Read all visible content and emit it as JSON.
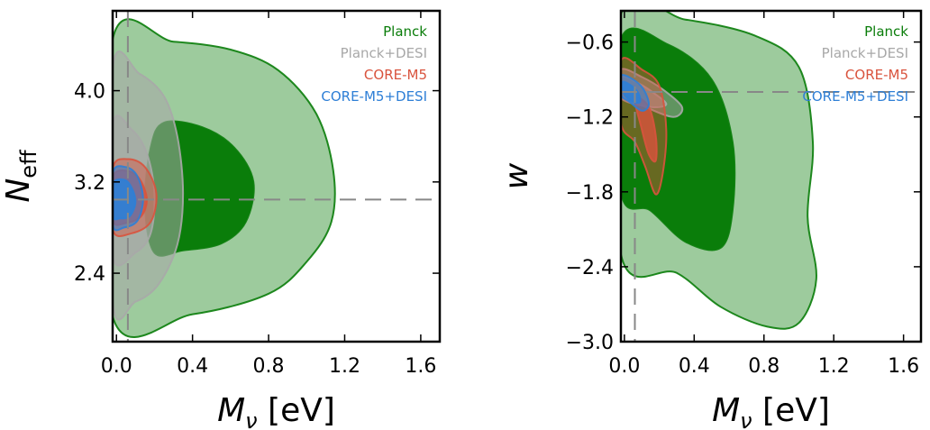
{
  "colors": {
    "planck": "#0a7d0a",
    "planck_desi": "#a8a8a8",
    "core_m5": "#d9533d",
    "core_m5_desi": "#2e7fd6",
    "reference": "#888888"
  },
  "chart_data": [
    {
      "type": "contour",
      "xlabel": "M_ν [eV]",
      "ylabel": "N_eff",
      "xlim": [
        -0.02,
        1.7
      ],
      "ylim": [
        1.8,
        4.7
      ],
      "xticks": [
        "0.0",
        "0.4",
        "0.8",
        "1.2",
        "1.6"
      ],
      "yticks": [
        "2.4",
        "3.2",
        "4.0"
      ],
      "xtick_values": [
        0.0,
        0.4,
        0.8,
        1.2,
        1.6
      ],
      "ytick_values": [
        2.4,
        3.2,
        4.0
      ],
      "fiducial": {
        "x": 0.06,
        "y": 3.046
      },
      "legend_position": "top-right",
      "series": [
        {
          "name": "Planck",
          "levels": [
            "68%",
            "95%"
          ],
          "contours": {
            "95": [
              [
                -0.02,
                4.45
              ],
              [
                0.3,
                4.43
              ],
              [
                0.6,
                4.36
              ],
              [
                0.85,
                4.18
              ],
              [
                1.05,
                3.8
              ],
              [
                1.14,
                3.3
              ],
              [
                1.13,
                2.85
              ],
              [
                1.0,
                2.5
              ],
              [
                0.8,
                2.22
              ],
              [
                0.4,
                2.04
              ],
              [
                -0.02,
                2.02
              ]
            ],
            "68": [
              [
                0.25,
                3.72
              ],
              [
                0.45,
                3.68
              ],
              [
                0.62,
                3.5
              ],
              [
                0.72,
                3.2
              ],
              [
                0.68,
                2.85
              ],
              [
                0.55,
                2.66
              ],
              [
                0.35,
                2.6
              ],
              [
                0.2,
                2.58
              ],
              [
                0.15,
                3.0
              ],
              [
                0.18,
                3.5
              ]
            ]
          }
        },
        {
          "name": "Planck+DESI",
          "levels": [
            "68%",
            "95%"
          ],
          "contours": {
            "95": [
              [
                -0.02,
                4.2
              ],
              [
                0.12,
                4.15
              ],
              [
                0.25,
                3.95
              ],
              [
                0.32,
                3.6
              ],
              [
                0.35,
                3.1
              ],
              [
                0.32,
                2.65
              ],
              [
                0.22,
                2.3
              ],
              [
                0.1,
                2.15
              ],
              [
                -0.02,
                2.15
              ]
            ],
            "68": [
              [
                -0.02,
                3.7
              ],
              [
                0.08,
                3.66
              ],
              [
                0.16,
                3.45
              ],
              [
                0.2,
                3.1
              ],
              [
                0.18,
                2.75
              ],
              [
                0.1,
                2.58
              ],
              [
                -0.02,
                2.55
              ]
            ]
          }
        },
        {
          "name": "CORE-M5",
          "levels": [
            "68%",
            "95%"
          ],
          "contours": {
            "95": [
              [
                -0.02,
                3.32
              ],
              [
                0.06,
                3.4
              ],
              [
                0.15,
                3.33
              ],
              [
                0.21,
                3.1
              ],
              [
                0.18,
                2.85
              ],
              [
                0.08,
                2.75
              ],
              [
                -0.02,
                2.78
              ]
            ],
            "68": [
              [
                -0.02,
                3.24
              ],
              [
                0.05,
                3.3
              ],
              [
                0.12,
                3.23
              ],
              [
                0.16,
                3.05
              ],
              [
                0.13,
                2.9
              ],
              [
                0.05,
                2.84
              ],
              [
                -0.02,
                2.86
              ]
            ]
          }
        },
        {
          "name": "CORE-M5+DESI",
          "levels": [
            "68%",
            "95%"
          ],
          "contours": {
            "95": [
              [
                -0.02,
                3.28
              ],
              [
                0.05,
                3.33
              ],
              [
                0.11,
                3.25
              ],
              [
                0.14,
                3.05
              ],
              [
                0.11,
                2.86
              ],
              [
                0.04,
                2.8
              ],
              [
                -0.02,
                2.82
              ]
            ],
            "68": [
              [
                -0.02,
                3.18
              ],
              [
                0.04,
                3.22
              ],
              [
                0.08,
                3.15
              ],
              [
                0.1,
                3.02
              ],
              [
                0.07,
                2.9
              ],
              [
                0.02,
                2.88
              ],
              [
                -0.02,
                2.9
              ]
            ]
          }
        }
      ]
    },
    {
      "type": "contour",
      "xlabel": "M_ν [eV]",
      "ylabel": "w",
      "xlim": [
        -0.02,
        1.7
      ],
      "ylim": [
        -3.0,
        -0.35
      ],
      "xticks": [
        "0.0",
        "0.4",
        "0.8",
        "1.2",
        "1.6"
      ],
      "yticks": [
        "−3.0",
        "−2.4",
        "−1.8",
        "−1.2",
        "−0.6"
      ],
      "xtick_values": [
        0.0,
        0.4,
        0.8,
        1.2,
        1.6
      ],
      "ytick_values": [
        -3.0,
        -2.4,
        -1.8,
        -1.2,
        -0.6
      ],
      "fiducial": {
        "x": 0.06,
        "y": -1.0
      },
      "legend_position": "top-right",
      "series": [
        {
          "name": "Planck",
          "levels": [
            "68%",
            "95%"
          ],
          "contours": {
            "95": [
              [
                -0.02,
                -0.38
              ],
              [
                0.35,
                -0.42
              ],
              [
                0.75,
                -0.55
              ],
              [
                1.0,
                -0.8
              ],
              [
                1.08,
                -1.4
              ],
              [
                1.05,
                -2.0
              ],
              [
                1.1,
                -2.5
              ],
              [
                1.0,
                -2.85
              ],
              [
                0.82,
                -2.88
              ],
              [
                0.55,
                -2.72
              ],
              [
                0.3,
                -2.45
              ],
              [
                -0.02,
                -2.3
              ]
            ],
            "68": [
              [
                -0.02,
                -0.58
              ],
              [
                0.25,
                -0.62
              ],
              [
                0.5,
                -0.9
              ],
              [
                0.62,
                -1.4
              ],
              [
                0.62,
                -1.95
              ],
              [
                0.55,
                -2.25
              ],
              [
                0.35,
                -2.2
              ],
              [
                0.15,
                -1.95
              ],
              [
                -0.02,
                -1.8
              ]
            ]
          }
        },
        {
          "name": "Planck+DESI",
          "levels": [
            "68%",
            "95%"
          ],
          "contours": {
            "95": [
              [
                -0.02,
                -0.82
              ],
              [
                0.1,
                -0.88
              ],
              [
                0.22,
                -0.98
              ],
              [
                0.33,
                -1.12
              ],
              [
                0.28,
                -1.2
              ],
              [
                0.12,
                -1.12
              ],
              [
                -0.02,
                -1.02
              ]
            ],
            "68": [
              [
                -0.02,
                -0.88
              ],
              [
                0.08,
                -0.93
              ],
              [
                0.18,
                -1.02
              ],
              [
                0.24,
                -1.1
              ],
              [
                0.15,
                -1.12
              ],
              [
                -0.02,
                -1.05
              ]
            ]
          }
        },
        {
          "name": "CORE-M5",
          "levels": [
            "68%",
            "95%"
          ],
          "contours": {
            "95": [
              [
                -0.02,
                -0.75
              ],
              [
                0.1,
                -0.82
              ],
              [
                0.2,
                -0.95
              ],
              [
                0.24,
                -1.3
              ],
              [
                0.22,
                -1.65
              ],
              [
                0.18,
                -1.82
              ],
              [
                0.12,
                -1.6
              ],
              [
                0.06,
                -1.4
              ],
              [
                -0.02,
                -1.25
              ]
            ],
            "68": [
              [
                0.06,
                -1.05
              ],
              [
                0.14,
                -1.12
              ],
              [
                0.18,
                -1.35
              ],
              [
                0.18,
                -1.55
              ],
              [
                0.14,
                -1.5
              ],
              [
                0.1,
                -1.3
              ]
            ]
          }
        },
        {
          "name": "CORE-M5+DESI",
          "levels": [
            "68%",
            "95%"
          ],
          "contours": {
            "95": [
              [
                -0.02,
                -0.87
              ],
              [
                0.05,
                -0.9
              ],
              [
                0.11,
                -0.98
              ],
              [
                0.14,
                -1.1
              ],
              [
                0.1,
                -1.15
              ],
              [
                0.03,
                -1.08
              ],
              [
                -0.02,
                -1.02
              ]
            ],
            "68": [
              [
                -0.01,
                -0.92
              ],
              [
                0.04,
                -0.95
              ],
              [
                0.08,
                -1.01
              ],
              [
                0.09,
                -1.08
              ],
              [
                0.05,
                -1.08
              ],
              [
                0.0,
                -1.02
              ]
            ]
          }
        }
      ]
    }
  ]
}
